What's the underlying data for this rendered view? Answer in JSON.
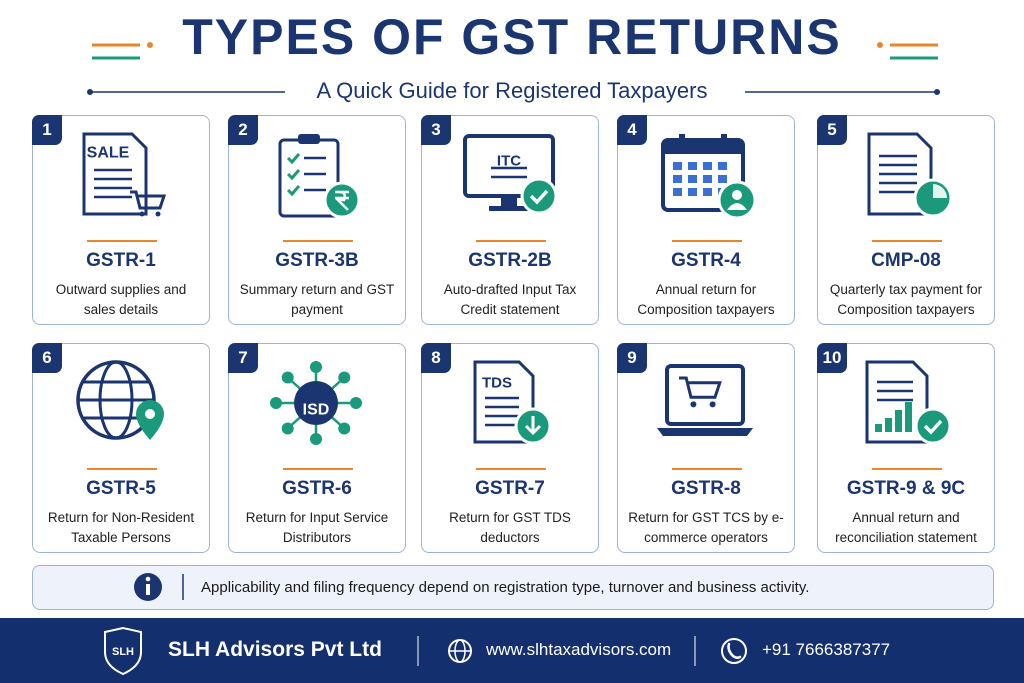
{
  "header": {
    "title": "TYPES OF GST RETURNS",
    "subtitle": "A Quick Guide for Registered Taxpayers"
  },
  "cards": [
    {
      "number": "1",
      "name": "GSTR-1",
      "description": "Outward supplies and sales details",
      "icon_label": "SALE"
    },
    {
      "number": "2",
      "name": "GSTR-3B",
      "description": "Summary return and GST payment"
    },
    {
      "number": "3",
      "name": "GSTR-2B",
      "description": "Auto-drafted Input Tax Credit statement",
      "icon_label": "ITC"
    },
    {
      "number": "4",
      "name": "GSTR-4",
      "description": "Annual return for Composition taxpayers"
    },
    {
      "number": "5",
      "name": "CMP-08",
      "description": "Quarterly tax payment for Composition taxpayers"
    },
    {
      "number": "6",
      "name": "GSTR-5",
      "description": "Return for Non-Resident Taxable Persons"
    },
    {
      "number": "7",
      "name": "GSTR-6",
      "description": "Return for Input Service Distributors",
      "icon_label": "ISD"
    },
    {
      "number": "8",
      "name": "GSTR-7",
      "description": "Return for GST TDS deductors",
      "icon_label": "TDS"
    },
    {
      "number": "9",
      "name": "GSTR-8",
      "description": "Return for GST TCS by e-commerce operators"
    },
    {
      "number": "10",
      "name": "GSTR-9 & 9C",
      "description": "Annual return and reconciliation statement"
    }
  ],
  "note": "Applicability and filing frequency depend on registration type, turnover and business activity.",
  "footer": {
    "logo": "SLH",
    "company": "SLH Advisors Pvt Ltd",
    "website": "www.slhtaxadvisors.com",
    "phone": "+91 7666387377"
  }
}
